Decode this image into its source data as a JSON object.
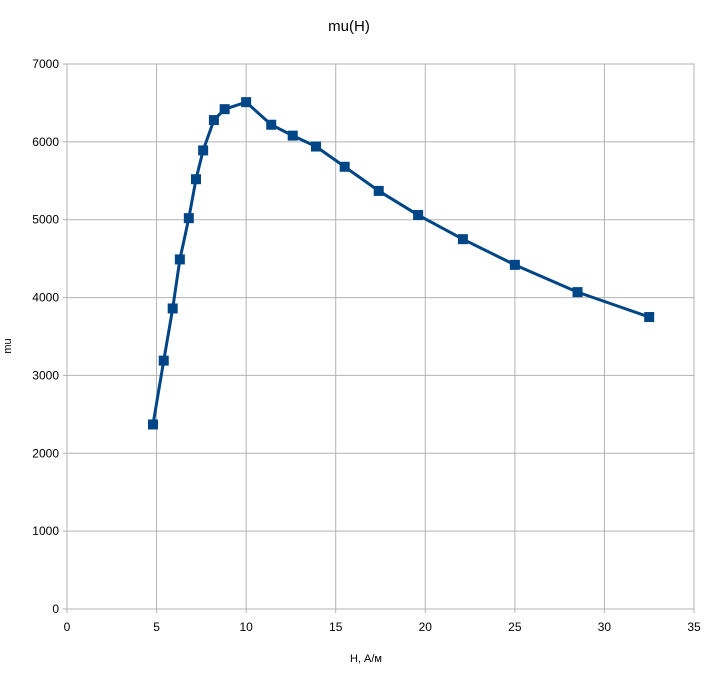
{
  "chart_data": {
    "type": "line",
    "title": "mu(H)",
    "xlabel": "H, А/м",
    "ylabel": "mu",
    "xlim": [
      0,
      35
    ],
    "ylim": [
      0,
      7000
    ],
    "x_ticks": [
      "0",
      "5",
      "10",
      "15",
      "20",
      "25",
      "30",
      "35"
    ],
    "y_ticks": [
      "0",
      "1000",
      "2000",
      "3000",
      "4000",
      "5000",
      "6000",
      "7000"
    ],
    "grid": true,
    "legend": "none",
    "series": [
      {
        "color": "#004586",
        "marker": "square",
        "points": [
          {
            "x": 4.8,
            "y": 2370
          },
          {
            "x": 5.4,
            "y": 3190
          },
          {
            "x": 5.9,
            "y": 3860
          },
          {
            "x": 6.3,
            "y": 4490
          },
          {
            "x": 6.8,
            "y": 5020
          },
          {
            "x": 7.2,
            "y": 5520
          },
          {
            "x": 7.6,
            "y": 5890
          },
          {
            "x": 8.2,
            "y": 6280
          },
          {
            "x": 8.8,
            "y": 6420
          },
          {
            "x": 10.0,
            "y": 6510
          },
          {
            "x": 11.4,
            "y": 6220
          },
          {
            "x": 12.6,
            "y": 6080
          },
          {
            "x": 13.9,
            "y": 5940
          },
          {
            "x": 15.5,
            "y": 5680
          },
          {
            "x": 17.4,
            "y": 5370
          },
          {
            "x": 19.6,
            "y": 5060
          },
          {
            "x": 22.1,
            "y": 4750
          },
          {
            "x": 25.0,
            "y": 4420
          },
          {
            "x": 28.5,
            "y": 4070
          },
          {
            "x": 32.5,
            "y": 3750
          }
        ]
      }
    ]
  }
}
